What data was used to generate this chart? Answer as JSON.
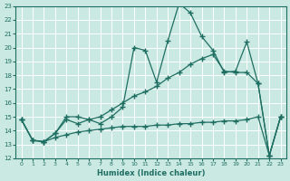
{
  "xlabel": "Humidex (Indice chaleur)",
  "xlim": [
    -0.5,
    23.5
  ],
  "ylim": [
    12,
    23
  ],
  "yticks": [
    12,
    13,
    14,
    15,
    16,
    17,
    18,
    19,
    20,
    21,
    22,
    23
  ],
  "xticks": [
    0,
    1,
    2,
    3,
    4,
    5,
    6,
    7,
    8,
    9,
    10,
    11,
    12,
    13,
    14,
    15,
    16,
    17,
    18,
    19,
    20,
    21,
    22,
    23
  ],
  "bg_color": "#cbe9e3",
  "line_color": "#1e6e62",
  "grid_color": "#ffffff",
  "series1": [
    14.8,
    13.3,
    13.2,
    13.8,
    15.0,
    15.0,
    14.8,
    14.5,
    15.0,
    15.7,
    20.0,
    19.8,
    17.5,
    20.5,
    23.2,
    22.5,
    20.8,
    19.8,
    18.2,
    18.3,
    20.4,
    17.4,
    12.2,
    15.0
  ],
  "series2": [
    14.8,
    13.3,
    13.2,
    13.8,
    14.8,
    14.5,
    14.8,
    15.0,
    15.5,
    16.0,
    16.5,
    16.8,
    17.2,
    17.8,
    18.2,
    18.8,
    19.2,
    19.5,
    18.3,
    18.2,
    18.2,
    17.4,
    12.2,
    15.0
  ],
  "series3": [
    14.8,
    13.3,
    13.2,
    13.5,
    13.7,
    13.9,
    14.0,
    14.1,
    14.2,
    14.3,
    14.3,
    14.3,
    14.4,
    14.4,
    14.5,
    14.5,
    14.6,
    14.6,
    14.7,
    14.7,
    14.8,
    15.0,
    12.2,
    15.0
  ]
}
